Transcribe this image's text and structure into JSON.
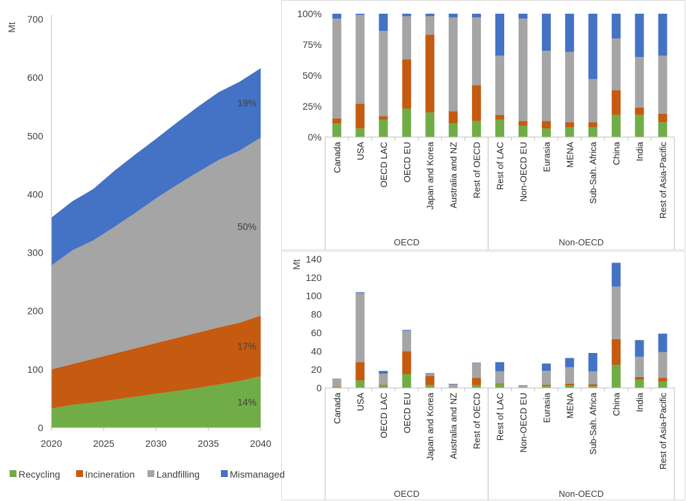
{
  "colors": {
    "recycling": "#70AD47",
    "incineration": "#C55A11",
    "landfilling": "#A5A5A5",
    "mismanaged": "#4472C4"
  },
  "chart_data": [
    {
      "type": "area",
      "title": "",
      "ylabel": "Mt",
      "xlabel": "",
      "x": [
        2020,
        2022,
        2024,
        2026,
        2028,
        2030,
        2032,
        2034,
        2036,
        2038,
        2040
      ],
      "xticks": [
        "2020",
        "2025",
        "2030",
        "2035",
        "2040"
      ],
      "yticks": [
        "0",
        "100",
        "200",
        "300",
        "400",
        "500",
        "600",
        "700"
      ],
      "ylim": [
        0,
        700
      ],
      "series": [
        {
          "name": "Recycling",
          "values": [
            33,
            39,
            43,
            48,
            53,
            58,
            63,
            68,
            74,
            80,
            88
          ]
        },
        {
          "name": "Incineration",
          "values": [
            67,
            70,
            75,
            79,
            83,
            87,
            91,
            95,
            98,
            100,
            104
          ]
        },
        {
          "name": "Landfilling",
          "values": [
            178,
            195,
            203,
            217,
            232,
            248,
            262,
            275,
            287,
            295,
            305
          ]
        },
        {
          "name": "Mismanaged",
          "values": [
            82,
            84,
            88,
            96,
            100,
            102,
            107,
            112,
            116,
            118,
            119
          ]
        }
      ],
      "annotations": [
        "14%",
        "17%",
        "50%",
        "19%"
      ],
      "legend": [
        "Recycling",
        "Incineration",
        "Landfilling",
        "Mismanaged"
      ]
    },
    {
      "type": "bar",
      "stacked": "percent",
      "categories": [
        "Canada",
        "USA",
        "OECD LAC",
        "OECD EU",
        "Japan and Korea",
        "Australia and NZ",
        "Rest of OECD",
        "Rest of LAC",
        "Non-OECD EU",
        "Eurasia",
        "MENA",
        "Sub-Sah. Africa",
        "China",
        "India",
        "Rest of Asia-Pacific"
      ],
      "groups": [
        {
          "name": "OECD",
          "count": 7
        },
        {
          "name": "Non-OECD",
          "count": 8
        }
      ],
      "yticks": [
        "0%",
        "25%",
        "50%",
        "75%",
        "100%"
      ],
      "ylim": [
        0,
        100
      ],
      "series": [
        {
          "name": "Recycling",
          "values": [
            11,
            7,
            14,
            23,
            20,
            11,
            13,
            14,
            9,
            7,
            8,
            8,
            18,
            18,
            12
          ]
        },
        {
          "name": "Incineration",
          "values": [
            4,
            20,
            3,
            40,
            63,
            10,
            29,
            4,
            4,
            6,
            4,
            4,
            20,
            6,
            7
          ]
        },
        {
          "name": "Landfilling",
          "values": [
            81,
            72,
            69,
            35,
            15,
            76,
            55,
            48,
            83,
            57,
            57,
            35,
            42,
            41,
            47
          ]
        },
        {
          "name": "Mismanaged",
          "values": [
            4,
            1,
            14,
            2,
            2,
            3,
            3,
            34,
            4,
            30,
            31,
            53,
            20,
            35,
            34
          ]
        }
      ]
    },
    {
      "type": "bar",
      "stacked": "absolute",
      "ylabel": "Mt",
      "categories": [
        "Canada",
        "USA",
        "OECD LAC",
        "OECD EU",
        "Japan and Korea",
        "Australia and NZ",
        "Rest of OECD",
        "Rest of LAC",
        "Non-OECD EU",
        "Eurasia",
        "MENA",
        "Sub-Sah. Africa",
        "China",
        "India",
        "Rest of Asia-Pacific"
      ],
      "groups": [
        {
          "name": "OECD",
          "count": 7
        },
        {
          "name": "Non-OECD",
          "count": 8
        }
      ],
      "yticks": [
        "0",
        "20",
        "40",
        "60",
        "80",
        "100",
        "120",
        "140"
      ],
      "ylim": [
        0,
        140
      ],
      "series": [
        {
          "name": "Recycling",
          "values": [
            1,
            8,
            3,
            15,
            3,
            0.5,
            3,
            4,
            0.3,
            2,
            3,
            2,
            25,
            9,
            7
          ]
        },
        {
          "name": "Incineration",
          "values": [
            0.5,
            20,
            0.5,
            25,
            10,
            0.5,
            8,
            1,
            0.2,
            1.5,
            1.5,
            2,
            28,
            3,
            4
          ]
        },
        {
          "name": "Landfilling",
          "values": [
            8,
            75,
            12,
            22,
            2,
            3,
            16,
            13,
            2.2,
            15,
            18,
            14,
            57,
            22,
            28
          ]
        },
        {
          "name": "Mismanaged",
          "values": [
            0.5,
            1,
            3,
            1,
            1,
            0.5,
            0.5,
            10,
            0.3,
            8,
            10,
            20,
            26,
            18,
            20
          ]
        }
      ]
    }
  ]
}
